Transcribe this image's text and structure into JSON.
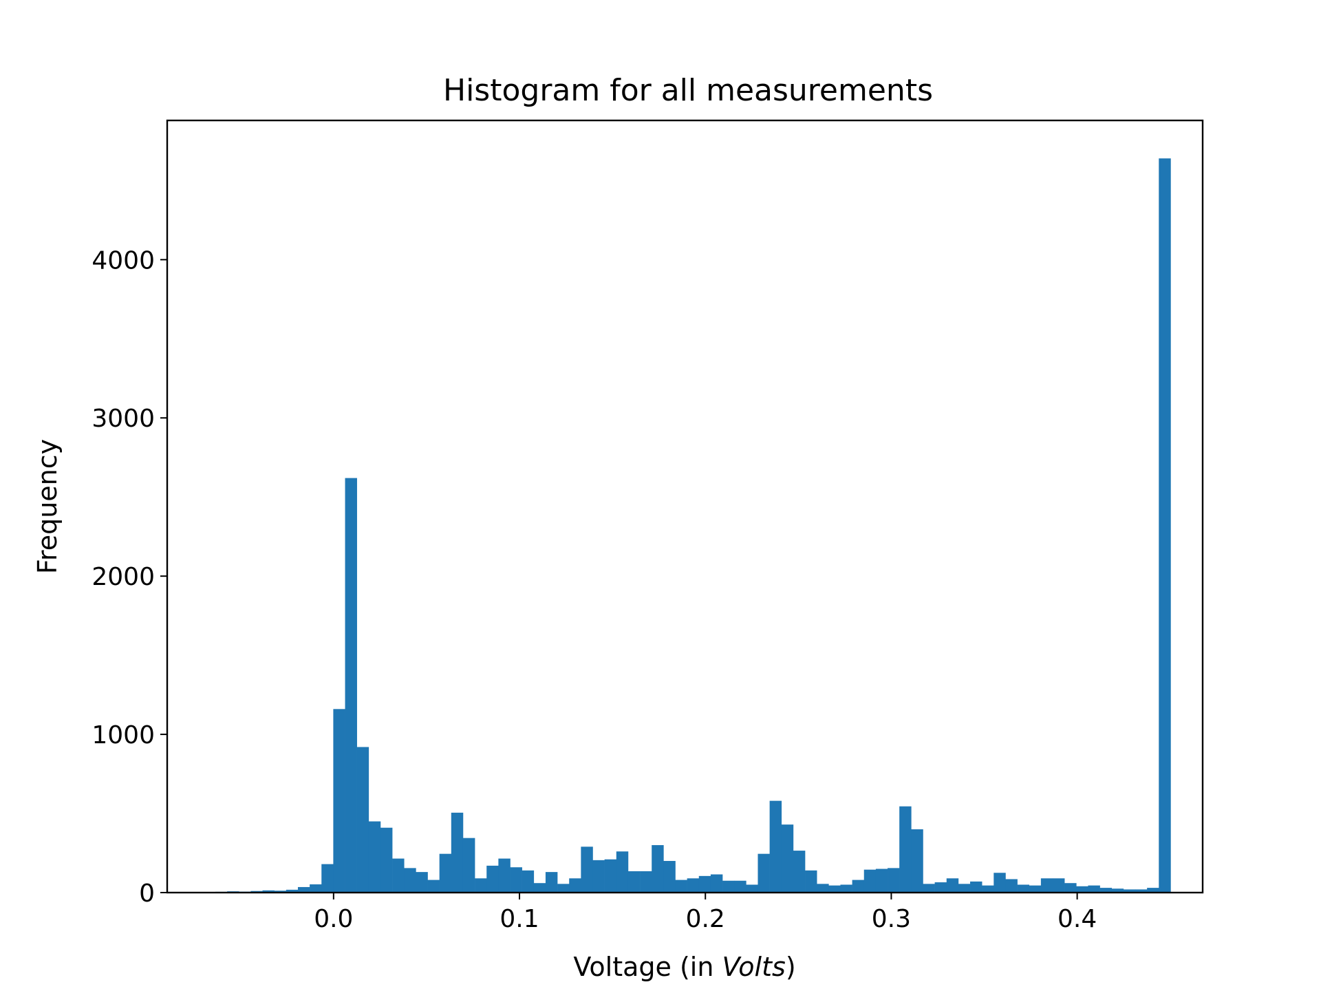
{
  "chart_data": {
    "type": "bar",
    "title": "Histogram for all measurements",
    "xlabel": "Voltage (in ",
    "xlabel_italic": "Volts",
    "xlabel_end": ")",
    "ylabel": "Frequency",
    "xlim": [
      -0.0895,
      0.4675
    ],
    "ylim": [
      0,
      4880
    ],
    "xticks": [
      0.0,
      0.1,
      0.2,
      0.3,
      0.4
    ],
    "xtick_labels": [
      "0.0",
      "0.1",
      "0.2",
      "0.3",
      "0.4"
    ],
    "yticks": [
      0,
      1000,
      2000,
      3000,
      4000
    ],
    "ytick_labels": [
      "0",
      "1000",
      "2000",
      "3000",
      "4000"
    ],
    "grid": false,
    "bar_color": "#1f77b4",
    "bin_start": -0.0636,
    "bin_width": 0.006344,
    "values": [
      5,
      8,
      6,
      10,
      14,
      12,
      18,
      35,
      52,
      180,
      1160,
      920,
      450,
      410,
      215,
      155,
      130,
      80,
      245,
      505,
      345,
      90,
      170,
      215,
      160,
      140,
      60,
      130,
      55,
      90,
      290,
      205,
      210,
      260,
      135,
      135,
      300,
      200,
      80,
      90,
      105,
      115,
      75,
      75,
      50,
      245,
      580,
      430,
      265,
      140,
      55,
      45,
      50,
      80,
      145,
      150,
      155,
      545,
      400,
      55,
      65,
      90,
      55,
      70,
      45,
      125,
      85,
      50,
      45,
      90,
      90,
      60,
      40,
      45,
      30,
      25,
      20,
      20,
      30,
      4640
    ],
    "extra_values": [
      2620
    ]
  }
}
